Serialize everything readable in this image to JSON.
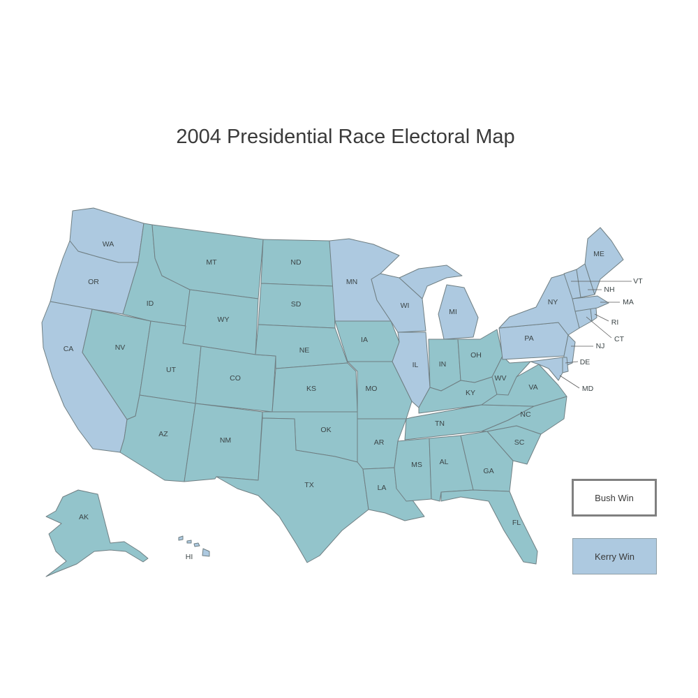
{
  "title": "2004 Presidential Race Electoral Map",
  "colors": {
    "bush": "#93c4cb",
    "kerry": "#adc9e0",
    "border": "#6f7e82",
    "text": "#3a3a3a"
  },
  "legend": {
    "bush_label": "Bush Win",
    "kerry_label": "Kerry Win"
  },
  "states": {
    "WA": {
      "winner": "kerry"
    },
    "OR": {
      "winner": "kerry"
    },
    "CA": {
      "winner": "kerry"
    },
    "NV": {
      "winner": "bush"
    },
    "ID": {
      "winner": "bush"
    },
    "MT": {
      "winner": "bush"
    },
    "WY": {
      "winner": "bush"
    },
    "UT": {
      "winner": "bush"
    },
    "AZ": {
      "winner": "bush"
    },
    "CO": {
      "winner": "bush"
    },
    "NM": {
      "winner": "bush"
    },
    "ND": {
      "winner": "bush"
    },
    "SD": {
      "winner": "bush"
    },
    "NE": {
      "winner": "bush"
    },
    "KS": {
      "winner": "bush"
    },
    "OK": {
      "winner": "bush"
    },
    "TX": {
      "winner": "bush"
    },
    "MN": {
      "winner": "kerry"
    },
    "IA": {
      "winner": "bush"
    },
    "MO": {
      "winner": "bush"
    },
    "AR": {
      "winner": "bush"
    },
    "LA": {
      "winner": "bush"
    },
    "WI": {
      "winner": "kerry"
    },
    "IL": {
      "winner": "kerry"
    },
    "MI": {
      "winner": "kerry"
    },
    "IN": {
      "winner": "bush"
    },
    "OH": {
      "winner": "bush"
    },
    "KY": {
      "winner": "bush"
    },
    "TN": {
      "winner": "bush"
    },
    "MS": {
      "winner": "bush"
    },
    "AL": {
      "winner": "bush"
    },
    "GA": {
      "winner": "bush"
    },
    "FL": {
      "winner": "bush"
    },
    "SC": {
      "winner": "bush"
    },
    "NC": {
      "winner": "bush"
    },
    "VA": {
      "winner": "bush"
    },
    "WV": {
      "winner": "bush"
    },
    "PA": {
      "winner": "kerry"
    },
    "NY": {
      "winner": "kerry"
    },
    "NJ": {
      "winner": "kerry"
    },
    "DE": {
      "winner": "kerry"
    },
    "MD": {
      "winner": "kerry"
    },
    "CT": {
      "winner": "kerry"
    },
    "RI": {
      "winner": "kerry"
    },
    "MA": {
      "winner": "kerry"
    },
    "VT": {
      "winner": "kerry"
    },
    "NH": {
      "winner": "kerry"
    },
    "ME": {
      "winner": "kerry"
    },
    "AK": {
      "winner": "bush"
    },
    "HI": {
      "winner": "kerry"
    }
  }
}
